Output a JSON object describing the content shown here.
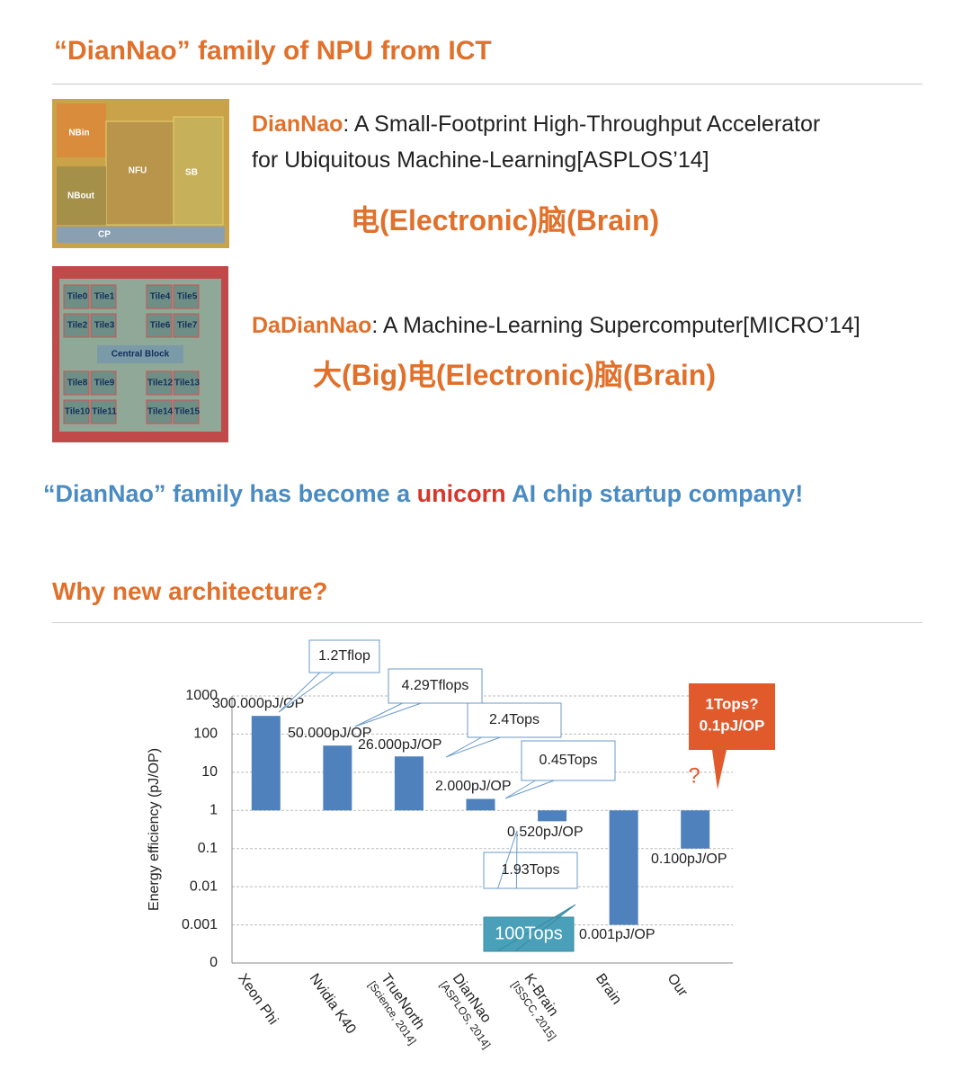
{
  "header": {
    "title": "“DianNao” family of NPU from ICT"
  },
  "papers": [
    {
      "name": "DianNao",
      "rest": ": A Small-Footprint High-Throughput Accelerator",
      "line2": "for Ubiquitous Machine-Learning[ASPLOS’14]",
      "meaning": "电(Electronic)脑(Brain)",
      "image_labels": [
        "NBin",
        "NFU",
        "SB",
        "NBout",
        "CP"
      ]
    },
    {
      "name": "DaDianNao",
      "rest": ": A Machine-Learning Supercomputer[MICRO’14]",
      "meaning": "大(Big)电(Electronic)脑(Brain)",
      "image_labels": [
        "Tile0",
        "Tile1",
        "Tile4",
        "Tile5",
        "Tile2",
        "Tile3",
        "Tile6",
        "Tile7",
        "Central Block",
        "Tile8",
        "Tile9",
        "Tile12",
        "Tile13",
        "Tile10",
        "Tile11",
        "Tile14",
        "Tile15"
      ]
    }
  ],
  "statement": {
    "before": "“DianNao” family has become a ",
    "highlight": "unicorn",
    "after": " AI chip startup company!"
  },
  "section": {
    "title": "Why new architecture?"
  },
  "chart_data": {
    "type": "bar",
    "log_scale": true,
    "base": 1,
    "y_label": "Energy efficiency (pJ/OP)",
    "categories": [
      "Xeon Phi",
      "Nvidia K40",
      "TrueNorth",
      "DianNao",
      "K-Brain",
      "Brain",
      "Our"
    ],
    "category_notes": [
      null,
      null,
      "[Science, 2014]",
      "[ASPLOS, 2014]",
      "[ISSCC, 2015]",
      null,
      null
    ],
    "values": [
      300,
      50,
      26,
      2,
      0.52,
      0.001,
      0.1
    ],
    "value_labels": [
      "300.000pJ/OP",
      "50.000pJ/OP",
      "26.000pJ/OP",
      "2.000pJ/OP",
      "0.520pJ/OP",
      "0.001pJ/OP",
      "0.100pJ/OP"
    ],
    "color": "#4f81bd",
    "ylim": [
      0.0001,
      1000
    ],
    "yticks": [
      {
        "value": 0.0001,
        "label": "0"
      },
      0.001,
      0.01,
      0.1,
      1,
      10,
      100,
      1000
    ],
    "grid": true,
    "callouts": [
      "1.2Tflop",
      "4.29Tflops",
      "2.4Tops",
      "0.45Tops",
      "1.93Tops",
      "100Tops"
    ],
    "highlight": [
      "1Tops?",
      "0.1pJ/OP"
    ],
    "question": "?"
  }
}
